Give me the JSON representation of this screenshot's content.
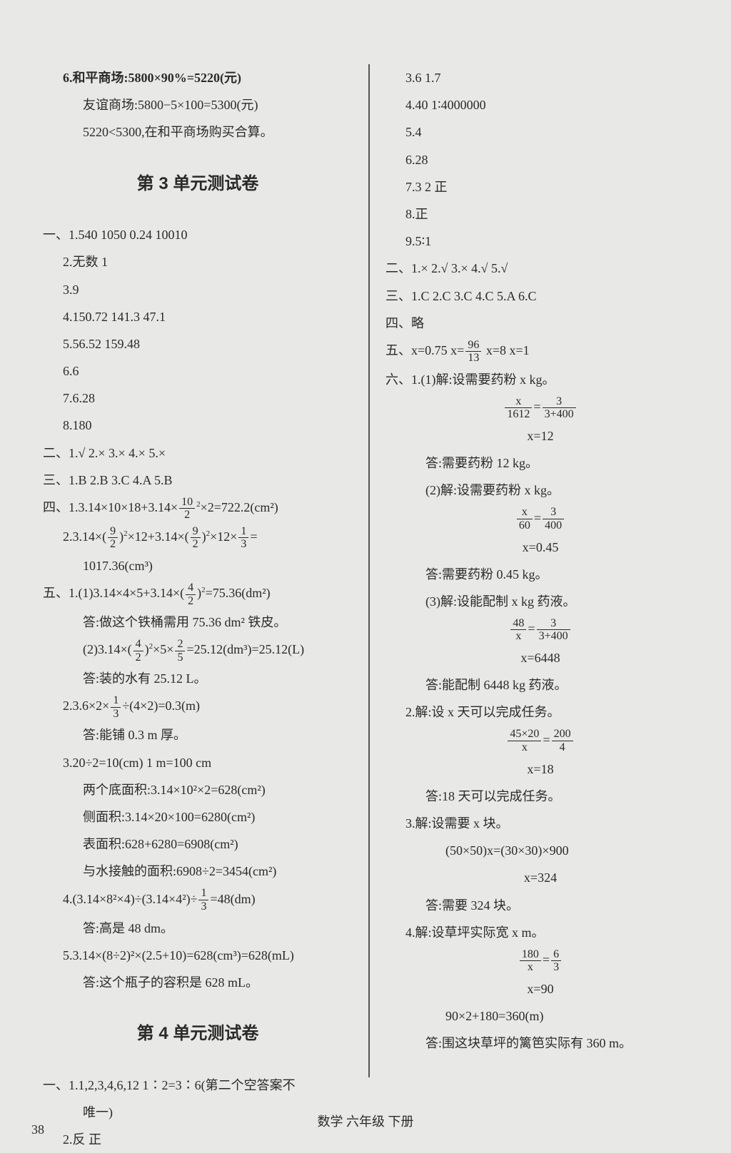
{
  "footer": "数学 六年级 下册",
  "page_number": "38",
  "colors": {
    "bg": "#e8e8e6",
    "text": "#2a2a2a",
    "divider": "#555"
  },
  "left": {
    "l1": "6.和平商场:5800×90%=5220(元)",
    "l2": "友谊商场:5800−5×100=5300(元)",
    "l3": "5220<5300,在和平商场购买合算。",
    "h1": "第 3 单元测试卷",
    "l4": "一、1.540   1050   0.24   10010",
    "l5": "2.无数   1",
    "l6": "3.9",
    "l7": "4.150.72   141.3   47.1",
    "l8": "5.56.52   159.48",
    "l9": "6.6",
    "l10": "7.6.28",
    "l11": "8.180",
    "l12": "二、1.√   2.×   3.×   4.×   5.×",
    "l13": "三、1.B   2.B   3.C   4.A   5.B",
    "l20": "答:做这个铁桶需用 75.36 dm² 铁皮。",
    "l23": "答:装的水有 25.12 L。",
    "l26": "答:能铺 0.3 m 厚。",
    "l27": "3.20÷2=10(cm)   1 m=100 cm",
    "l28": "两个底面积:3.14×10²×2=628(cm²)",
    "l29": "侧面积:3.14×20×100=6280(cm²)",
    "l30": "表面积:628+6280=6908(cm²)",
    "l31": "与水接触的面积:6908÷2=3454(cm²)",
    "l34": "答:高是 48 dm。",
    "l35": "5.3.14×(8÷2)²×(2.5+10)=628(cm³)=628(mL)",
    "l36": "答:这个瓶子的容积是 628 mL。",
    "h2": "第 4 单元测试卷",
    "l37": "一、1.1,2,3,4,6,12   1∶2=3∶6(第二个空答案不",
    "l38": "唯一)",
    "l39": "2.反   正"
  },
  "right": {
    "r1": "3.6   1.7",
    "r2": "4.40   1∶4000000",
    "r3": "5.4",
    "r4": "6.28",
    "r5": "7.3   2   正",
    "r6": "8.正",
    "r7": "9.5∶1",
    "r8": "二、1.×   2.√   3.×   4.√   5.√",
    "r9": "三、1.C   2.C   3.C   4.C   5.A   6.C",
    "r10": "四、略",
    "r12": "六、1.(1)解:设需要药粉 x kg。",
    "r15": "x=12",
    "r16": "答:需要药粉 12 kg。",
    "r17": "(2)解:设需要药粉 x kg。",
    "r20": "x=0.45",
    "r21": "答:需要药粉 0.45 kg。",
    "r22": "(3)解:设能配制 x kg 药液。",
    "r25": "x=6448",
    "r26": "答:能配制 6448 kg 药液。",
    "r27": "2.解:设 x 天可以完成任务。",
    "r30": "x=18",
    "r31": "答:18 天可以完成任务。",
    "r32": "3.解:设需要 x 块。",
    "r33": "(50×50)x=(30×30)×900",
    "r34": "x=324",
    "r35": "答:需要 324 块。",
    "r36": "4.解:设草坪实际宽 x m。",
    "r39": "x=90",
    "r40": "90×2+180=360(m)",
    "r41": "答:围这块草坪的篱笆实际有 360 m。"
  }
}
